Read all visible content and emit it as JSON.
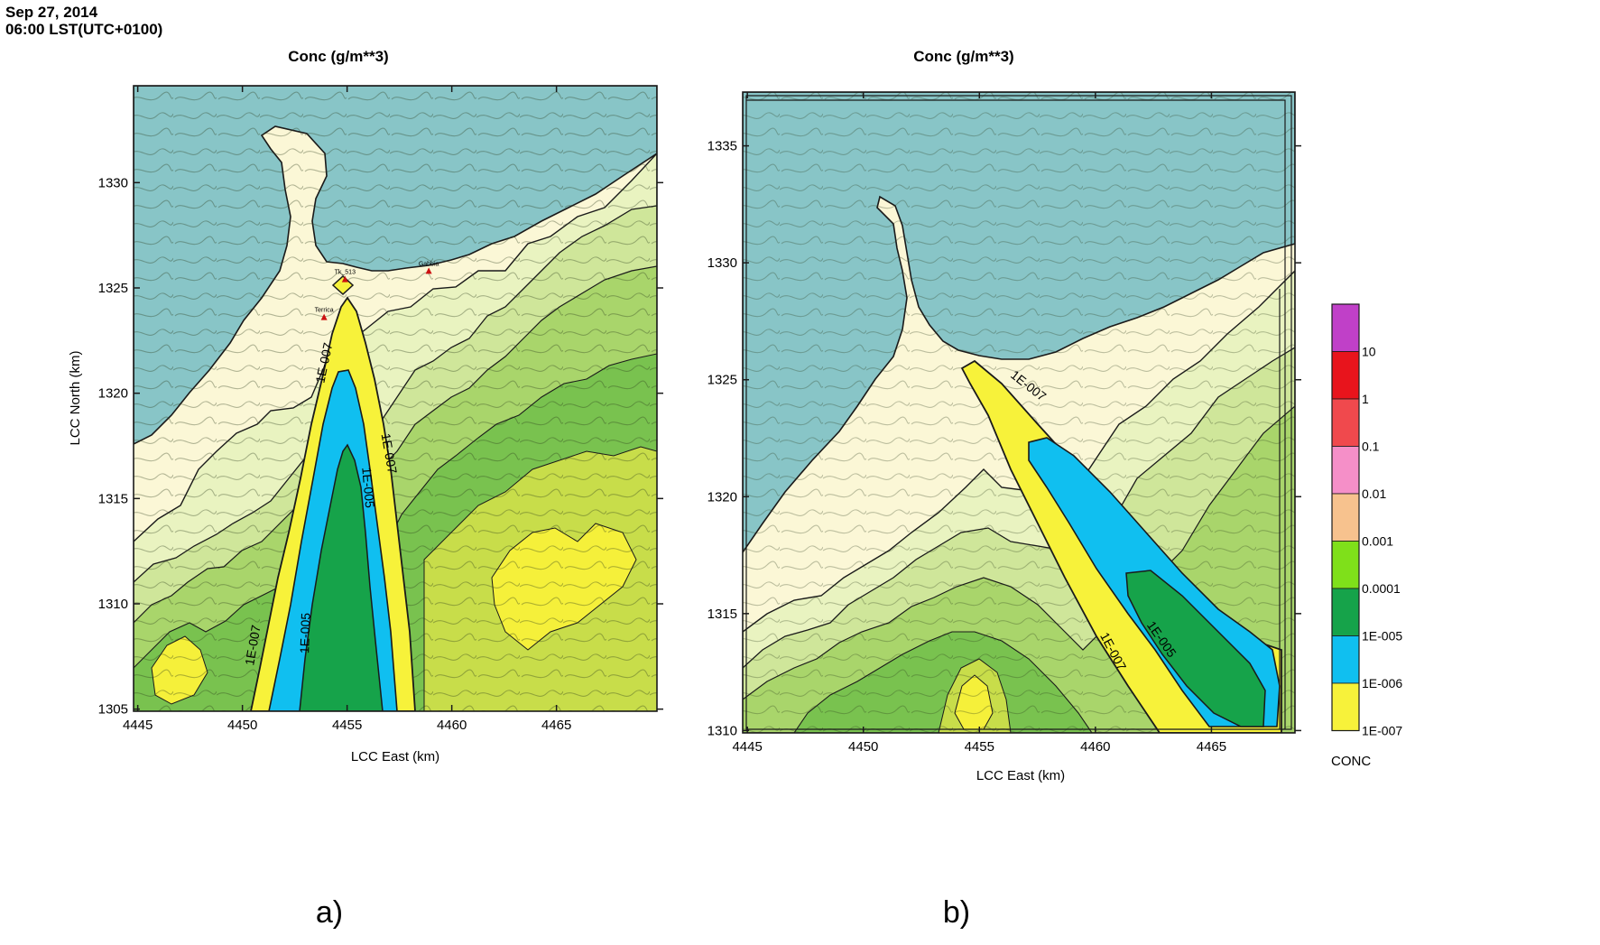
{
  "header": {
    "date": "Sep 27, 2014",
    "time": "06:00 LST(UTC+0100)"
  },
  "colors": {
    "sea": "#88c5c7",
    "bg_lowest": "#fbf7d6",
    "bg_1": "#e9f3c0",
    "bg_2": "#cfe69a",
    "bg_3": "#a9d56b",
    "bg_4": "#79c24f",
    "bg_hi": "#f5f03a",
    "plume_1e7": "#f7f23a",
    "plume_1e6": "#10bff0",
    "plume_1e5": "#16a34a"
  },
  "chart_data": [
    {
      "type": "heatmap",
      "panel_label": "a)",
      "title": "Conc (g/m**3)",
      "xlabel": "LCC East (km)",
      "ylabel": "LCC North (km)",
      "xlim": [
        4444.8,
        4469.8
      ],
      "ylim": [
        1304.9,
        1334.6
      ],
      "xticks": [
        4445,
        4450,
        4455,
        4460,
        4465
      ],
      "yticks": [
        1305,
        1310,
        1315,
        1320,
        1325,
        1330
      ],
      "stations": [
        {
          "name": "Tk_513",
          "x": 4454.9,
          "y": 1325.4
        },
        {
          "name": "Gabbia",
          "x": 4458.9,
          "y": 1325.8
        },
        {
          "name": "Terrica",
          "x": 4453.9,
          "y": 1323.6
        }
      ],
      "contour_labels": [
        {
          "text": "1E-007",
          "x": 4454.1,
          "y": 1321.4,
          "angle": -78
        },
        {
          "text": "1E-007",
          "x": 4456.8,
          "y": 1317.1,
          "angle": 80
        },
        {
          "text": "1E-005",
          "x": 4455.8,
          "y": 1315.5,
          "angle": 85
        },
        {
          "text": "1E-005",
          "x": 4453.2,
          "y": 1308.6,
          "angle": -88
        },
        {
          "text": "1E-007",
          "x": 4450.7,
          "y": 1308.0,
          "angle": -80
        }
      ]
    },
    {
      "type": "heatmap",
      "panel_label": "b)",
      "title": "Conc (g/m**3)",
      "xlabel": "LCC East (km)",
      "ylabel": "",
      "xlim": [
        4444.8,
        4468.6
      ],
      "ylim": [
        1309.9,
        1337.3
      ],
      "xticks": [
        4445,
        4450,
        4455,
        4460,
        4465
      ],
      "yticks": [
        1310,
        1315,
        1320,
        1325,
        1330,
        1335
      ],
      "contour_labels": [
        {
          "text": "1E-007",
          "x": 4457.0,
          "y": 1324.6,
          "angle": 38
        },
        {
          "text": "1E-007",
          "x": 4460.6,
          "y": 1313.3,
          "angle": 62
        },
        {
          "text": "1E-005",
          "x": 4462.7,
          "y": 1313.8,
          "angle": 55
        }
      ]
    }
  ],
  "legend": {
    "title": "CONC",
    "levels": [
      {
        "label": "10",
        "color": "#c040c8"
      },
      {
        "label": "1",
        "color": "#e8141c"
      },
      {
        "label": "0.1",
        "color": "#f0494d"
      },
      {
        "label": "0.01",
        "color": "#f58fc8"
      },
      {
        "label": "0.001",
        "color": "#f7c28e"
      },
      {
        "label": "0.0001",
        "color": "#7fe01a"
      },
      {
        "label": "1E-005",
        "color": "#16a34a"
      },
      {
        "label": "1E-006",
        "color": "#10bff0"
      },
      {
        "label": "1E-007",
        "color": "#f7f23a"
      }
    ]
  }
}
